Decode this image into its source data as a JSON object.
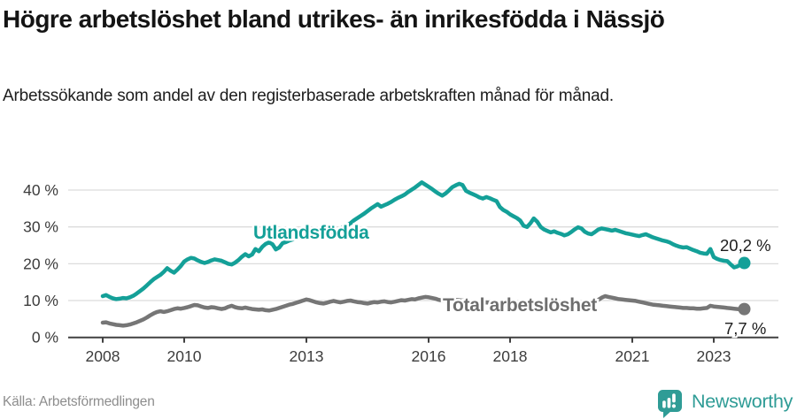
{
  "header": {
    "title": "Högre arbetslöshet bland utrikes- än inrikesfödda i Nässjö",
    "subtitle": "Arbetssökande som andel av den registerbaserade arbetskraften månad för månad."
  },
  "footer": {
    "source": "Källa: Arbetsförmedlingen",
    "brand": "Newsworthy"
  },
  "colors": {
    "accent_teal": "#14a098",
    "series_gray": "#767676",
    "grid": "#dcdcdc",
    "axis": "#404040",
    "tick_text": "#3c3c3c",
    "value_text": "#1d1d1d",
    "brand_teal": "#2f9c96"
  },
  "chart_data": {
    "type": "line",
    "title": "",
    "xlabel": "",
    "ylabel": "",
    "x_start": "2008-01",
    "x_end": "2023-10",
    "x_frequency": "monthly",
    "ylim": [
      0,
      44
    ],
    "grid": true,
    "x_ticks": [
      {
        "v": 2008,
        "label": "2008"
      },
      {
        "v": 2010,
        "label": "2010"
      },
      {
        "v": 2013,
        "label": "2013"
      },
      {
        "v": 2016,
        "label": "2016"
      },
      {
        "v": 2018,
        "label": "2018"
      },
      {
        "v": 2021,
        "label": "2021"
      },
      {
        "v": 2023,
        "label": "2023"
      }
    ],
    "y_ticks": [
      {
        "v": 0,
        "label": "0 %"
      },
      {
        "v": 10,
        "label": "10 %"
      },
      {
        "v": 20,
        "label": "20 %"
      },
      {
        "v": 30,
        "label": "30 %"
      },
      {
        "v": 40,
        "label": "40 %"
      }
    ],
    "series": [
      {
        "name": "Utlandsfödda",
        "color": "#14a098",
        "end_label": "20,2 %",
        "end_value": 20.2,
        "values": [
          11.2,
          11.5,
          11.0,
          10.6,
          10.4,
          10.5,
          10.7,
          10.6,
          10.9,
          11.3,
          11.9,
          12.6,
          13.3,
          14.1,
          15.0,
          15.8,
          16.4,
          17.0,
          17.8,
          18.8,
          18.1,
          17.6,
          18.4,
          19.4,
          20.6,
          21.2,
          21.6,
          21.4,
          20.9,
          20.5,
          20.2,
          20.5,
          20.9,
          21.2,
          21.0,
          20.8,
          20.4,
          20.0,
          19.8,
          20.3,
          21.0,
          21.9,
          22.6,
          22.0,
          22.5,
          24.0,
          23.4,
          24.6,
          25.4,
          25.8,
          25.3,
          23.9,
          24.4,
          25.6,
          25.9,
          26.3,
          26.6,
          27.0,
          27.4,
          27.7,
          28.0,
          28.3,
          28.0,
          27.6,
          28.0,
          28.5,
          29.0,
          28.7,
          28.4,
          28.9,
          29.5,
          30.0,
          30.4,
          31.0,
          31.8,
          32.4,
          33.0,
          33.6,
          34.3,
          35.0,
          35.6,
          36.2,
          35.5,
          35.9,
          36.3,
          36.8,
          37.4,
          37.9,
          38.3,
          38.8,
          39.5,
          40.1,
          40.7,
          41.4,
          42.1,
          41.5,
          40.9,
          40.3,
          39.6,
          39.0,
          38.5,
          39.1,
          39.9,
          40.8,
          41.3,
          41.7,
          41.4,
          39.8,
          39.3,
          38.9,
          38.5,
          38.0,
          37.7,
          38.1,
          37.8,
          37.4,
          37.0,
          35.4,
          34.6,
          34.1,
          33.4,
          32.9,
          32.4,
          31.7,
          30.3,
          30.0,
          31.0,
          32.3,
          31.4,
          30.0,
          29.3,
          28.9,
          28.5,
          28.8,
          28.4,
          28.1,
          27.7,
          28.0,
          28.6,
          29.3,
          29.9,
          29.6,
          28.7,
          28.2,
          28.0,
          28.6,
          29.3,
          29.6,
          29.4,
          29.2,
          29.0,
          29.2,
          28.9,
          28.6,
          28.3,
          28.1,
          27.9,
          27.7,
          27.5,
          27.8,
          28.0,
          27.6,
          27.2,
          26.9,
          26.6,
          26.3,
          26.1,
          25.8,
          25.3,
          24.9,
          24.6,
          24.4,
          24.5,
          24.1,
          23.7,
          23.4,
          23.0,
          22.8,
          22.7,
          24.0,
          21.8,
          21.3,
          21.0,
          20.8,
          20.7,
          19.8,
          19.0,
          19.3,
          19.8,
          20.2
        ]
      },
      {
        "name": "Total arbetslöshet",
        "color": "#767676",
        "end_label": "7,7 %",
        "end_value": 7.7,
        "values": [
          4.0,
          4.1,
          3.8,
          3.6,
          3.4,
          3.3,
          3.2,
          3.3,
          3.5,
          3.8,
          4.1,
          4.5,
          4.9,
          5.4,
          6.0,
          6.5,
          6.9,
          7.1,
          6.9,
          7.1,
          7.4,
          7.7,
          7.9,
          7.8,
          8.0,
          8.2,
          8.5,
          8.8,
          8.7,
          8.4,
          8.1,
          8.0,
          8.2,
          8.1,
          7.9,
          7.7,
          7.9,
          8.3,
          8.6,
          8.2,
          8.0,
          7.9,
          8.1,
          7.9,
          7.7,
          7.6,
          7.5,
          7.6,
          7.4,
          7.3,
          7.5,
          7.7,
          8.0,
          8.3,
          8.6,
          8.9,
          9.1,
          9.4,
          9.7,
          10.0,
          10.3,
          10.1,
          9.8,
          9.5,
          9.3,
          9.2,
          9.4,
          9.7,
          9.9,
          9.7,
          9.5,
          9.7,
          9.9,
          10.0,
          9.8,
          9.6,
          9.5,
          9.3,
          9.2,
          9.4,
          9.6,
          9.5,
          9.7,
          9.8,
          9.6,
          9.5,
          9.7,
          9.9,
          10.1,
          10.0,
          10.2,
          10.4,
          10.3,
          10.6,
          10.8,
          11.0,
          10.9,
          10.7,
          10.5,
          10.2,
          10.0,
          10.1,
          10.2,
          10.3,
          10.2,
          10.1,
          10.0,
          9.9,
          9.8,
          9.7,
          9.6,
          9.5,
          9.4,
          9.5,
          9.4,
          9.3,
          9.2,
          9.1,
          9.0,
          8.9,
          8.8,
          8.7,
          8.6,
          8.5,
          8.5,
          8.6,
          8.7,
          8.8,
          8.7,
          8.6,
          8.5,
          8.6,
          8.7,
          8.8,
          8.7,
          8.6,
          8.6,
          8.7,
          8.9,
          9.1,
          9.3,
          9.2,
          9.1,
          9.2,
          9.4,
          9.6,
          10.2,
          10.8,
          11.2,
          11.0,
          10.8,
          10.6,
          10.4,
          10.3,
          10.2,
          10.1,
          10.0,
          9.9,
          9.7,
          9.5,
          9.3,
          9.1,
          8.9,
          8.8,
          8.7,
          8.6,
          8.5,
          8.4,
          8.3,
          8.2,
          8.1,
          8.0,
          8.0,
          7.9,
          7.9,
          7.8,
          7.8,
          7.9,
          8.0,
          8.6,
          8.4,
          8.3,
          8.2,
          8.1,
          8.0,
          7.9,
          7.8,
          7.7,
          7.6,
          7.7
        ]
      }
    ],
    "legend": "inline-labels"
  }
}
